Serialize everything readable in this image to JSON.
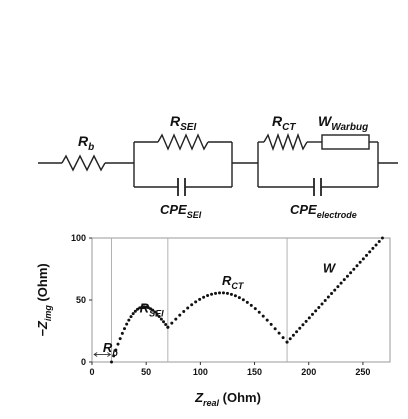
{
  "circuit": {
    "elements": [
      {
        "id": "rb",
        "symbol": "R",
        "sub": "b"
      },
      {
        "id": "rsei",
        "symbol": "R",
        "sub": "SEI"
      },
      {
        "id": "cpesei",
        "symbol": "CPE",
        "sub": "SEI"
      },
      {
        "id": "rct",
        "symbol": "R",
        "sub": "CT"
      },
      {
        "id": "w",
        "symbol": "W",
        "sub": "Warbug"
      },
      {
        "id": "cpeel",
        "symbol": "CPE",
        "sub": "electrode"
      }
    ]
  },
  "chart_data": {
    "type": "scatter",
    "xlabel": {
      "main": "Z",
      "sub": "real",
      "unit": " (Ohm)"
    },
    "ylabel": {
      "prefix": "−Z",
      "sub": "img",
      "unit": " (Ohm)"
    },
    "xlim": [
      0,
      275
    ],
    "ylim": [
      0,
      100
    ],
    "xticks": [
      0,
      50,
      100,
      150,
      200,
      250
    ],
    "yticks": [
      0,
      50,
      100
    ],
    "guide_lines_x": [
      18,
      70,
      180
    ],
    "annotations": [
      {
        "id": "rb",
        "symbol": "R",
        "sub": "b",
        "x": 10,
        "y": 8
      },
      {
        "id": "rsei",
        "symbol": "R",
        "sub": "SEI",
        "x": 44,
        "y": 40
      },
      {
        "id": "rct",
        "symbol": "R",
        "sub": "CT",
        "x": 120,
        "y": 62
      },
      {
        "id": "w",
        "symbol": "W",
        "sub": "",
        "x": 213,
        "y": 72
      }
    ],
    "rb_arrow": {
      "x_start": 2,
      "x_end": 17,
      "y": 6
    },
    "series": [
      {
        "segments": [
          {
            "kind": "arc",
            "x_start": 18,
            "x_end": 70,
            "y_end": 28,
            "depth": 32,
            "n": 26
          },
          {
            "kind": "arc",
            "x_start": 70,
            "x_end": 180,
            "y_start": 28,
            "y_end": 16,
            "depth": 36,
            "n": 30
          },
          {
            "kind": "line",
            "x_start": 180,
            "x_end": 268,
            "y_start": 16,
            "y_end": 100,
            "n": 30
          }
        ]
      }
    ]
  }
}
